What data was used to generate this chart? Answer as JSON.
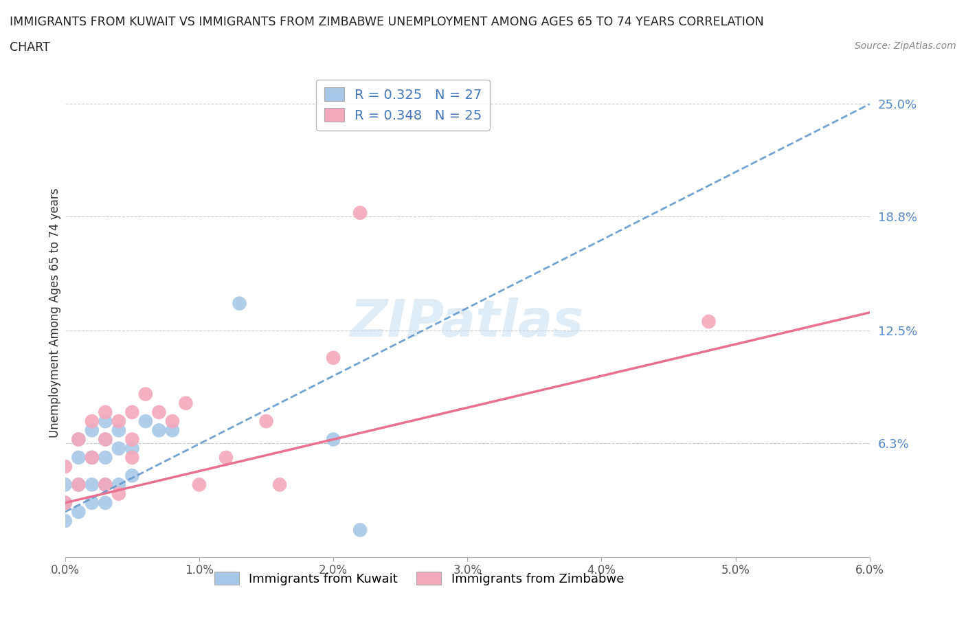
{
  "title_line1": "IMMIGRANTS FROM KUWAIT VS IMMIGRANTS FROM ZIMBABWE UNEMPLOYMENT AMONG AGES 65 TO 74 YEARS CORRELATION",
  "title_line2": "CHART",
  "source": "Source: ZipAtlas.com",
  "ylabel": "Unemployment Among Ages 65 to 74 years",
  "xlim": [
    0.0,
    0.06
  ],
  "ylim": [
    0.0,
    0.27
  ],
  "yticks": [
    0.063,
    0.125,
    0.188,
    0.25
  ],
  "ytick_labels": [
    "6.3%",
    "12.5%",
    "18.8%",
    "25.0%"
  ],
  "xticks": [
    0.0,
    0.01,
    0.02,
    0.03,
    0.04,
    0.05,
    0.06
  ],
  "xtick_labels": [
    "0.0%",
    "1.0%",
    "2.0%",
    "3.0%",
    "4.0%",
    "5.0%",
    "6.0%"
  ],
  "kuwait_color": "#a8c8e8",
  "zimbabwe_color": "#f4a8bc",
  "kuwait_line_color": "#6699cc",
  "zimbabwe_line_color": "#e87090",
  "R_kuwait": 0.325,
  "N_kuwait": 27,
  "R_zimbabwe": 0.348,
  "N_zimbabwe": 25,
  "watermark": "ZIPatlas",
  "kuwait_line_x0": 0.0,
  "kuwait_line_y0": 0.025,
  "kuwait_line_x1": 0.06,
  "kuwait_line_y1": 0.25,
  "zimbabwe_line_x0": 0.0,
  "zimbabwe_line_y0": 0.03,
  "zimbabwe_line_x1": 0.06,
  "zimbabwe_line_y1": 0.135,
  "kuwait_x": [
    0.0,
    0.0,
    0.0,
    0.001,
    0.001,
    0.001,
    0.001,
    0.002,
    0.002,
    0.002,
    0.002,
    0.003,
    0.003,
    0.003,
    0.003,
    0.003,
    0.004,
    0.004,
    0.004,
    0.005,
    0.005,
    0.006,
    0.007,
    0.008,
    0.013,
    0.02,
    0.022
  ],
  "kuwait_y": [
    0.02,
    0.03,
    0.04,
    0.025,
    0.04,
    0.055,
    0.065,
    0.03,
    0.04,
    0.055,
    0.07,
    0.03,
    0.04,
    0.055,
    0.065,
    0.075,
    0.04,
    0.06,
    0.07,
    0.045,
    0.06,
    0.075,
    0.07,
    0.07,
    0.14,
    0.065,
    0.015
  ],
  "zimbabwe_x": [
    0.0,
    0.0,
    0.001,
    0.001,
    0.002,
    0.002,
    0.003,
    0.003,
    0.003,
    0.004,
    0.004,
    0.005,
    0.005,
    0.005,
    0.006,
    0.007,
    0.008,
    0.009,
    0.01,
    0.012,
    0.015,
    0.016,
    0.02,
    0.022,
    0.048
  ],
  "zimbabwe_y": [
    0.03,
    0.05,
    0.04,
    0.065,
    0.055,
    0.075,
    0.04,
    0.065,
    0.08,
    0.035,
    0.075,
    0.055,
    0.065,
    0.08,
    0.09,
    0.08,
    0.075,
    0.085,
    0.04,
    0.055,
    0.075,
    0.04,
    0.11,
    0.19,
    0.13
  ],
  "bottom_legend_labels": [
    "Immigrants from Kuwait",
    "Immigrants from Zimbabwe"
  ]
}
